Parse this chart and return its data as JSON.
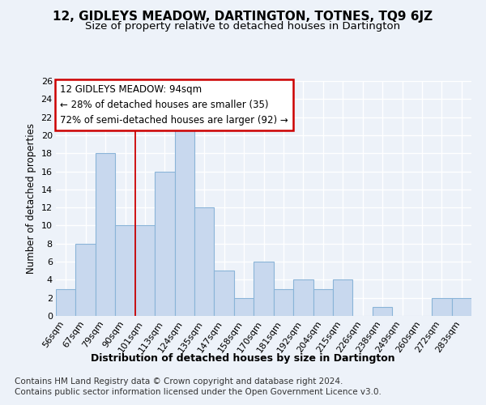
{
  "title": "12, GIDLEYS MEADOW, DARTINGTON, TOTNES, TQ9 6JZ",
  "subtitle": "Size of property relative to detached houses in Dartington",
  "xlabel": "Distribution of detached houses by size in Dartington",
  "ylabel": "Number of detached properties",
  "categories": [
    "56sqm",
    "67sqm",
    "79sqm",
    "90sqm",
    "101sqm",
    "113sqm",
    "124sqm",
    "135sqm",
    "147sqm",
    "158sqm",
    "170sqm",
    "181sqm",
    "192sqm",
    "204sqm",
    "215sqm",
    "226sqm",
    "238sqm",
    "249sqm",
    "260sqm",
    "272sqm",
    "283sqm"
  ],
  "values": [
    3,
    8,
    18,
    10,
    10,
    16,
    21,
    12,
    5,
    2,
    6,
    3,
    4,
    3,
    4,
    0,
    1,
    0,
    0,
    2,
    2
  ],
  "bar_color": "#c8d8ee",
  "bar_edgecolor": "#8ab4d8",
  "red_line_x": 3.5,
  "ylim": [
    0,
    26
  ],
  "yticks": [
    0,
    2,
    4,
    6,
    8,
    10,
    12,
    14,
    16,
    18,
    20,
    22,
    24,
    26
  ],
  "annotation_line1": "12 GIDLEYS MEADOW: 94sqm",
  "annotation_line2": "← 28% of detached houses are smaller (35)",
  "annotation_line3": "72% of semi-detached houses are larger (92) →",
  "annotation_box_facecolor": "#ffffff",
  "annotation_box_edgecolor": "#cc0000",
  "footnote1": "Contains HM Land Registry data © Crown copyright and database right 2024.",
  "footnote2": "Contains public sector information licensed under the Open Government Licence v3.0.",
  "bg_color": "#edf2f9",
  "grid_color": "#ffffff",
  "title_fontsize": 11,
  "subtitle_fontsize": 9.5,
  "xlabel_fontsize": 9,
  "ylabel_fontsize": 8.5,
  "tick_fontsize": 8,
  "annot_fontsize": 8.5,
  "footnote_fontsize": 7.5
}
